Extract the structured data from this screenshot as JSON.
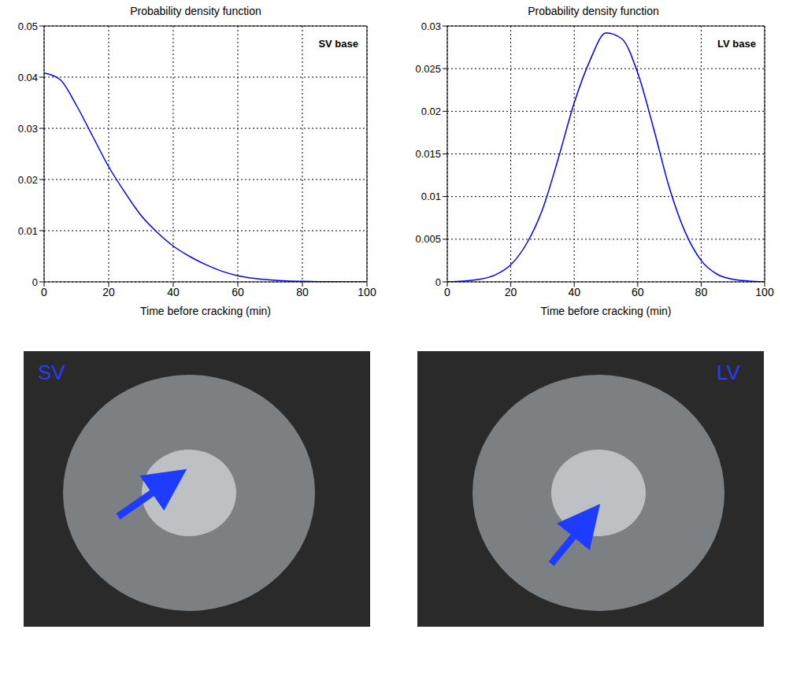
{
  "chart_data": [
    {
      "type": "line",
      "title": "Probability density function",
      "annotation": "SV base",
      "x_label": "Time before cracking (min)",
      "x": [
        0,
        5,
        10,
        15,
        20,
        25,
        30,
        35,
        40,
        45,
        50,
        55,
        60,
        65,
        70,
        75,
        80,
        85,
        90,
        95,
        100
      ],
      "values": [
        0.0408,
        0.0395,
        0.0345,
        0.0285,
        0.0225,
        0.0175,
        0.013,
        0.0097,
        0.007,
        0.005,
        0.0034,
        0.0021,
        0.0012,
        0.0007,
        0.0004,
        0.0002,
        0.0001,
        5e-05,
        2e-05,
        1e-05,
        0
      ],
      "color": "#0000ff",
      "xlim": [
        0,
        100
      ],
      "xticks": [
        0,
        20,
        40,
        60,
        80,
        100
      ],
      "ylim": [
        0,
        0.05
      ],
      "yticks": [
        0,
        0.01,
        0.02,
        0.03,
        0.04,
        0.05
      ],
      "grid": true
    },
    {
      "type": "line",
      "title": "Probability density function",
      "annotation": "LV base",
      "x_label": "Time before cracking (min)",
      "x": [
        0,
        5,
        10,
        15,
        20,
        25,
        30,
        35,
        40,
        45,
        50,
        55,
        60,
        65,
        70,
        75,
        80,
        85,
        90,
        95,
        100
      ],
      "values": [
        0,
        0.0001,
        0.0003,
        0.0008,
        0.002,
        0.0045,
        0.0085,
        0.0145,
        0.021,
        0.026,
        0.0292,
        0.0285,
        0.0245,
        0.018,
        0.011,
        0.0058,
        0.0025,
        0.0009,
        0.0003,
        0.0001,
        0
      ],
      "color": "#0000ff",
      "xlim": [
        0,
        100
      ],
      "xticks": [
        0,
        20,
        40,
        60,
        80,
        100
      ],
      "ylim": [
        0,
        0.03
      ],
      "yticks": [
        0,
        0.005,
        0.01,
        0.015,
        0.02,
        0.025,
        0.03
      ],
      "grid": true
    }
  ],
  "photos": [
    {
      "label": "SV"
    },
    {
      "label": "LV"
    }
  ]
}
